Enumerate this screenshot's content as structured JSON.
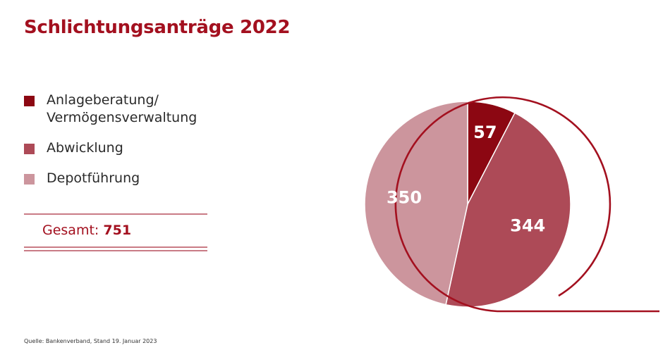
{
  "chart_data": {
    "type": "pie",
    "title": "Schlichtungsanträge 2022",
    "categories": [
      "Anlageberatung/\nVermögensverwaltung",
      "Abwicklung",
      "Depotführung"
    ],
    "values": [
      57,
      344,
      350
    ],
    "colors": [
      "#8c0712",
      "#ad4a57",
      "#cc959d"
    ],
    "total_label": "Gesamt:",
    "total_value": "751",
    "source": "Quelle: Bankenverband, Stand 19. Januar 2023",
    "legend_position": "left"
  },
  "accent_color": "#a3101f"
}
